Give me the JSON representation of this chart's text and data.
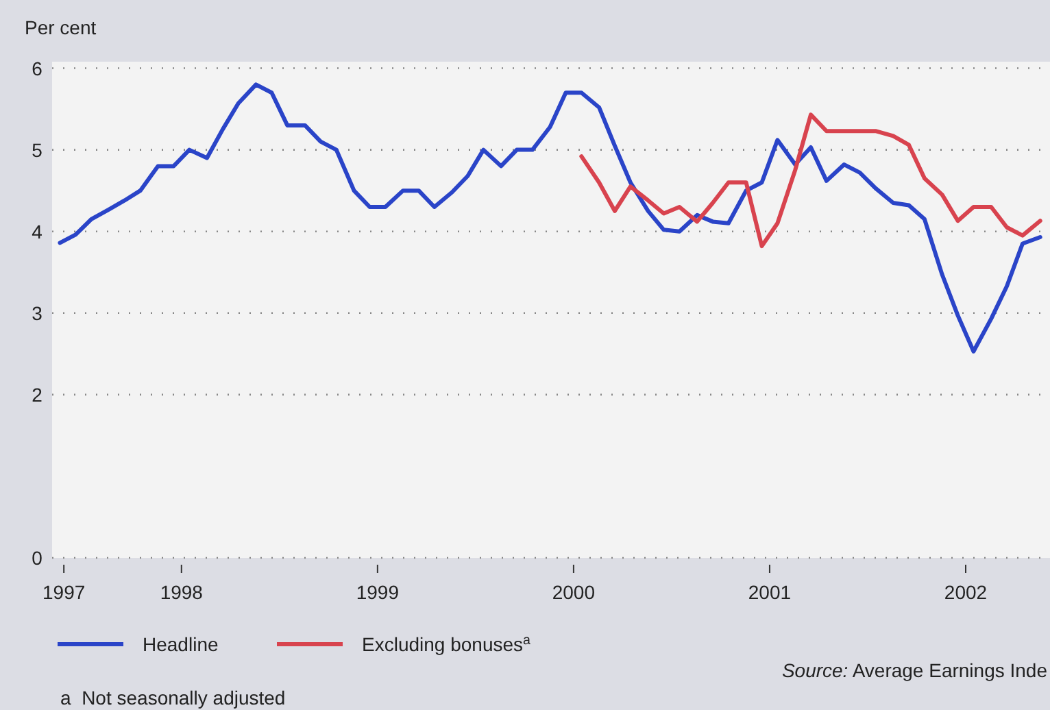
{
  "chart_data": {
    "type": "line",
    "ylabel": "Per cent",
    "x": [
      1997.38,
      1997.46,
      1997.54,
      1997.63,
      1997.71,
      1997.79,
      1997.88,
      1997.96,
      1998.04,
      1998.13,
      1998.21,
      1998.29,
      1998.38,
      1998.46,
      1998.54,
      1998.63,
      1998.71,
      1998.79,
      1998.88,
      1998.96,
      1999.04,
      1999.13,
      1999.21,
      1999.29,
      1999.38,
      1999.46,
      1999.54,
      1999.63,
      1999.71,
      1999.79,
      1999.88,
      1999.96,
      2000.04,
      2000.13,
      2000.21,
      2000.29,
      2000.38,
      2000.46,
      2000.54,
      2000.63,
      2000.71,
      2000.79,
      2000.88,
      2000.96,
      2001.04,
      2001.13,
      2001.21,
      2001.29,
      2001.38,
      2001.46,
      2001.54,
      2001.63,
      2001.71,
      2001.79,
      2001.88,
      2001.96,
      2002.04,
      2002.13,
      2002.21,
      2002.29,
      2002.38
    ],
    "series": [
      {
        "name": "Headline",
        "color": "#2a44c8",
        "values": [
          3.86,
          3.96,
          4.15,
          4.27,
          4.38,
          4.5,
          4.8,
          4.8,
          5.0,
          4.9,
          5.25,
          5.57,
          5.8,
          5.7,
          5.3,
          5.3,
          5.1,
          5.0,
          4.5,
          4.3,
          4.3,
          4.5,
          4.5,
          4.3,
          4.48,
          4.68,
          5.0,
          4.8,
          5.0,
          5.0,
          5.28,
          5.7,
          5.7,
          5.52,
          5.05,
          4.6,
          4.25,
          4.02,
          4.0,
          4.2,
          4.12,
          4.1,
          4.5,
          4.6,
          5.12,
          4.82,
          5.03,
          4.62,
          4.82,
          4.72,
          4.53,
          4.35,
          4.32,
          4.15,
          3.47,
          2.97,
          2.53,
          2.93,
          3.33,
          3.85,
          3.93
        ]
      },
      {
        "name": "Excluding bonuses$^{a}$",
        "color": "#d8434e",
        "values": [
          null,
          null,
          null,
          null,
          null,
          null,
          null,
          null,
          null,
          null,
          null,
          null,
          null,
          null,
          null,
          null,
          null,
          null,
          null,
          null,
          null,
          null,
          null,
          null,
          null,
          null,
          null,
          null,
          null,
          null,
          null,
          null,
          4.92,
          4.6,
          4.25,
          4.55,
          4.38,
          4.22,
          4.3,
          4.12,
          4.35,
          4.6,
          4.6,
          3.82,
          4.1,
          4.75,
          5.43,
          5.23,
          5.23,
          5.23,
          5.23,
          5.17,
          5.06,
          4.65,
          4.45,
          4.13,
          4.3,
          4.3,
          4.05,
          3.95,
          4.13
        ]
      }
    ],
    "xlim": [
      1997.34,
      2002.43
    ],
    "xticks": [
      {
        "value": 1997.4,
        "label": "1997"
      },
      1998,
      1999,
      2000,
      2001,
      2002
    ],
    "ylim": [
      0,
      6.08
    ],
    "yticks": [
      0,
      2,
      3,
      4,
      5,
      6
    ],
    "grid": "y",
    "legend": "bottom",
    "line_style": "solid",
    "annotations": [
      "Source: Average Earnings Inde",
      "a  Not seasonally adjusted"
    ]
  }
}
